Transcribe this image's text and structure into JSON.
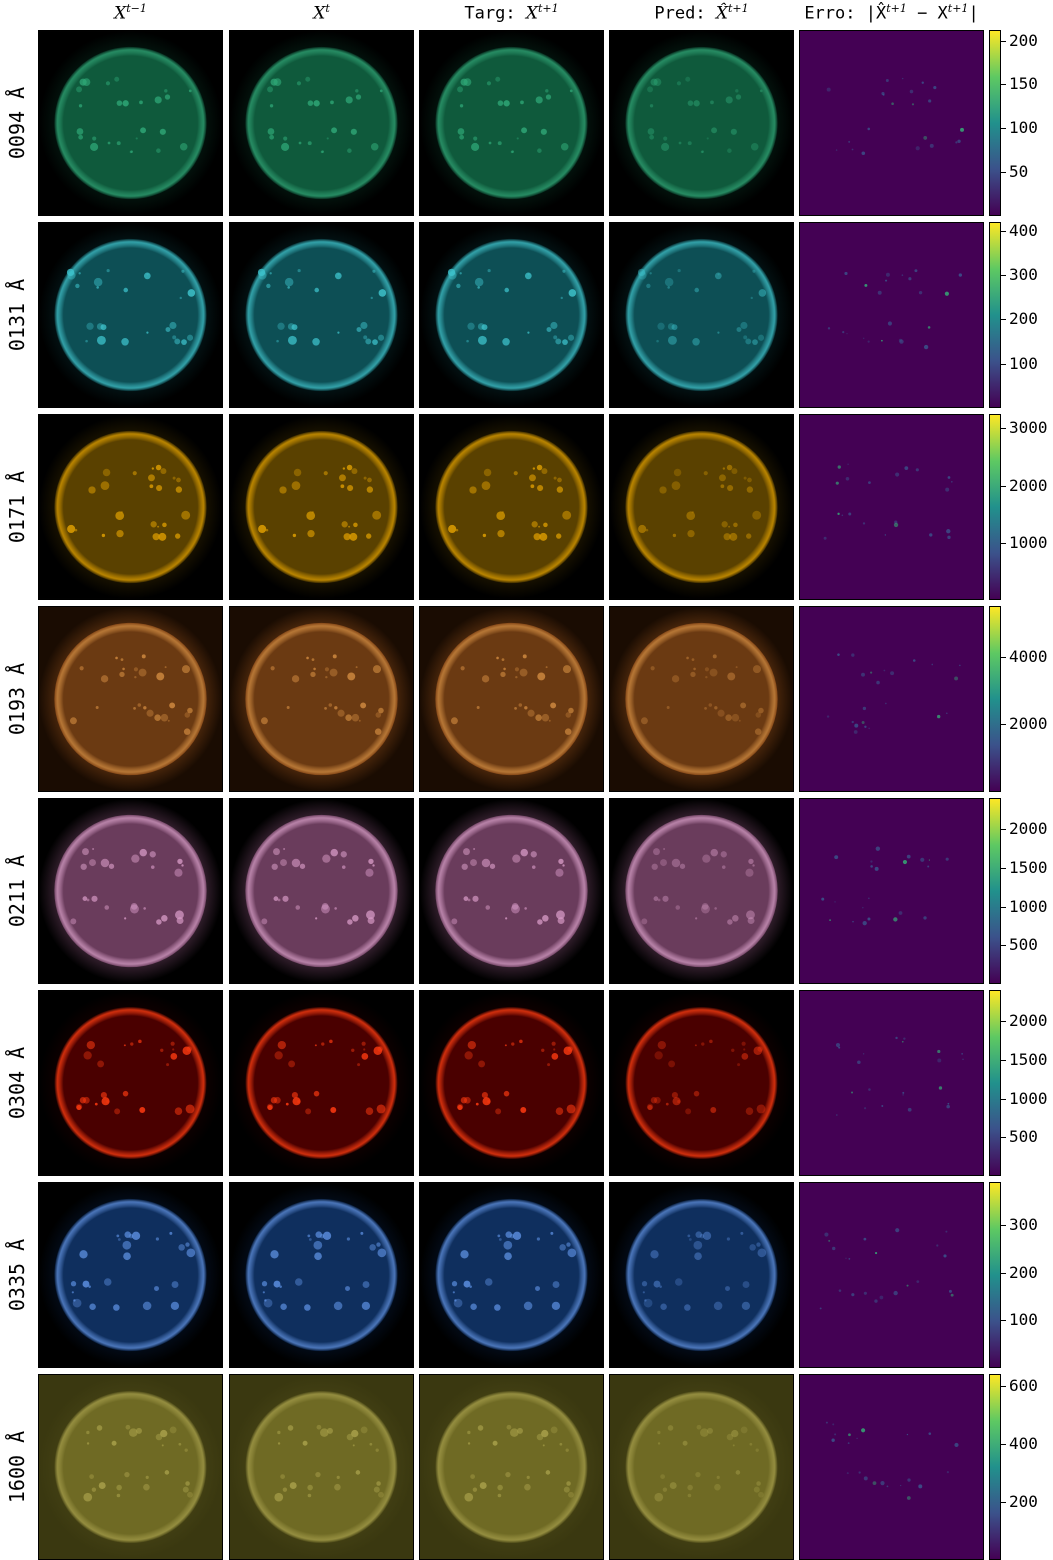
{
  "columns": [
    {
      "id": "prev",
      "base": "X",
      "sup": "t−1",
      "prefix": ""
    },
    {
      "id": "cur",
      "base": "X",
      "sup": "t",
      "prefix": ""
    },
    {
      "id": "targ",
      "base": "X",
      "sup": "t+1",
      "prefix": "Targ: "
    },
    {
      "id": "pred",
      "base": "X̂",
      "sup": "t+1",
      "prefix": "Pred: "
    },
    {
      "id": "erro",
      "text": "Erro: |X̂",
      "sup": "t+1",
      "mid": " − X",
      "sup2": "t+1",
      "suffix": "|"
    }
  ],
  "rows": [
    {
      "label": "0094 Å",
      "disk": "#0f5a3c",
      "glow": "#2fa877",
      "bg": "#000000",
      "corona": "#062c1e",
      "ticks": [
        "50",
        "100",
        "150",
        "200"
      ],
      "tick_values": [
        50,
        100,
        150,
        200
      ],
      "max": 212
    },
    {
      "label": "0131 Å",
      "disk": "#0d4f55",
      "glow": "#3ec3cc",
      "bg": "#000000",
      "corona": "#062a2e",
      "ticks": [
        "100",
        "200",
        "300",
        "400"
      ],
      "tick_values": [
        100,
        200,
        300,
        400
      ],
      "max": 420
    },
    {
      "label": "0171 Å",
      "disk": "#5a4100",
      "glow": "#e0a000",
      "bg": "#000000",
      "corona": "#3a2a00",
      "ticks": [
        "1000",
        "2000",
        "3000"
      ],
      "tick_values": [
        1000,
        2000,
        3000
      ],
      "max": 3250
    },
    {
      "label": "0193 Å",
      "disk": "#6b3a12",
      "glow": "#d08a40",
      "bg": "#1a0c02",
      "corona": "#8a4a18",
      "ticks": [
        "2000",
        "4000"
      ],
      "tick_values": [
        2000,
        4000
      ],
      "max": 5500
    },
    {
      "label": "0211 Å",
      "disk": "#6a3c5c",
      "glow": "#d79ac5",
      "bg": "#000000",
      "corona": "#7a4a6c",
      "ticks": [
        "500",
        "1000",
        "1500",
        "2000"
      ],
      "tick_values": [
        500,
        1000,
        1500,
        2000
      ],
      "max": 2400
    },
    {
      "label": "0304 Å",
      "disk": "#4a0000",
      "glow": "#ff3a10",
      "bg": "#000000",
      "corona": "#200000",
      "ticks": [
        "500",
        "1000",
        "1500",
        "2000"
      ],
      "tick_values": [
        500,
        1000,
        1500,
        2000
      ],
      "max": 2400
    },
    {
      "label": "0335 Å",
      "disk": "#0f2f5e",
      "glow": "#5c8fe0",
      "bg": "#000000",
      "corona": "#061a38",
      "ticks": [
        "100",
        "200",
        "300"
      ],
      "tick_values": [
        100,
        200,
        300
      ],
      "max": 390
    },
    {
      "label": "1600 Å",
      "disk": "#6f6a24",
      "glow": "#a8a04a",
      "bg": "#3a3810",
      "corona": "#4a4716",
      "ticks": [
        "200",
        "400",
        "600"
      ],
      "tick_values": [
        200,
        400,
        600
      ],
      "max": 640
    }
  ]
}
